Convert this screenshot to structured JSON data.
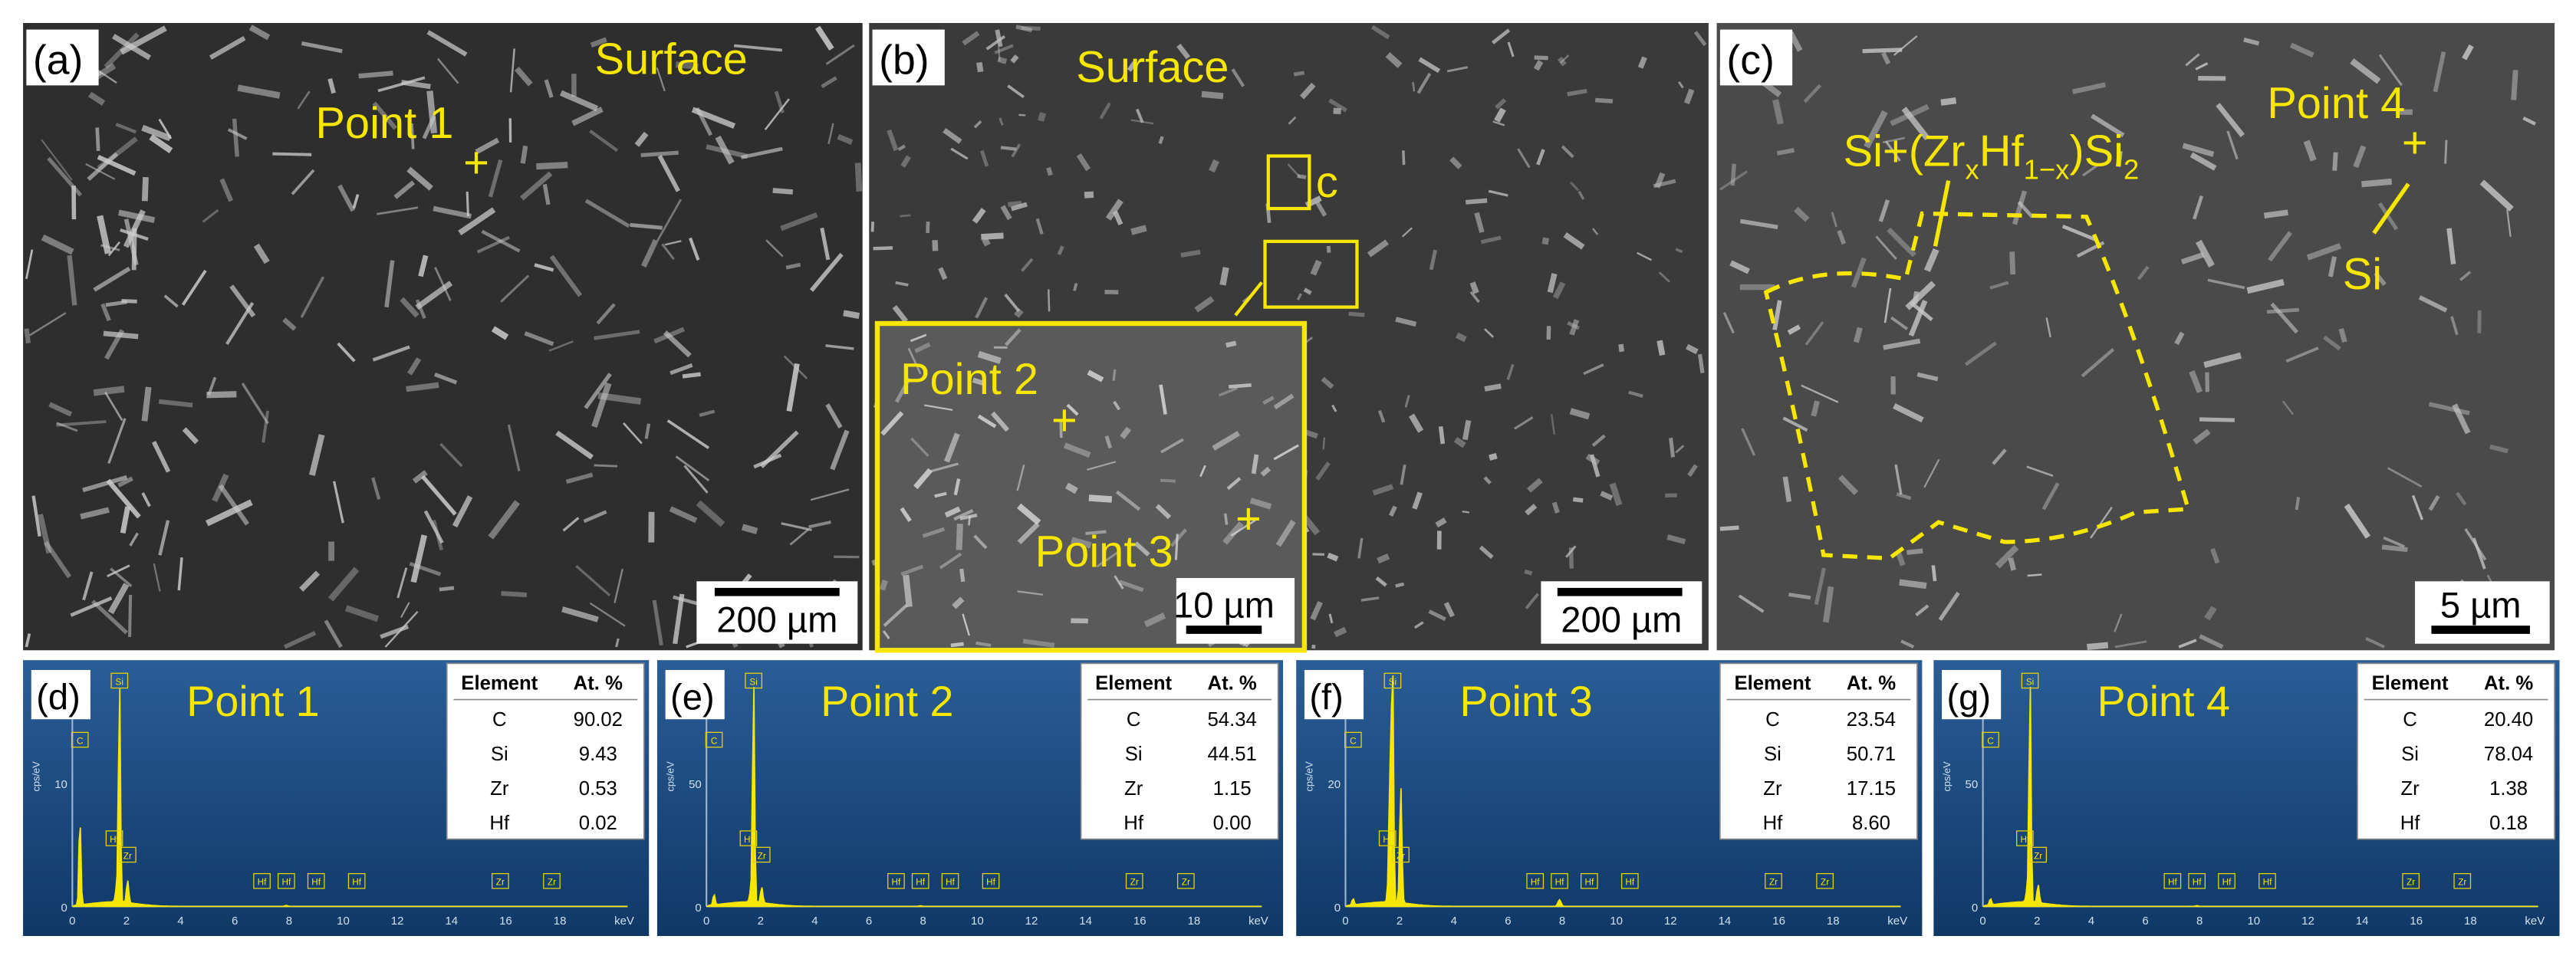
{
  "sem_panels": [
    {
      "label": "(a)",
      "annotations": [
        "Surface",
        "Point 1"
      ],
      "scale_bar": "200 µm"
    },
    {
      "label": "(b)",
      "annotations": [
        "Surface",
        "c",
        "Point 2",
        "Point 3"
      ],
      "scale_bar": "200 µm",
      "inset_scale_bar": "10 µm"
    },
    {
      "label": "(c)",
      "annotations": [
        "Point 4",
        "Si"
      ],
      "phase_label": [
        "Si+(Zr",
        "x",
        "Hf",
        "1−x",
        ")Si",
        "2"
      ],
      "scale_bar": "5 µm"
    }
  ],
  "eds_panels": [
    {
      "label": "(d)",
      "title": "Point 1",
      "y_axis_label": "cps/eV",
      "x_axis_label": "keV",
      "y_ticks": [
        "10",
        "0"
      ],
      "x_ticks": [
        "0",
        "2",
        "4",
        "6",
        "8",
        "10",
        "12",
        "14",
        "16",
        "18"
      ],
      "peak_labels": [
        "Si",
        "C",
        "Hf",
        "Zr",
        "Hf",
        "Hf",
        "Hf",
        "Hf",
        "Zr",
        "Zr"
      ],
      "table": {
        "header": [
          "Element",
          "At. %"
        ],
        "rows": [
          [
            "C",
            "90.02"
          ],
          [
            "Si",
            "9.43"
          ],
          [
            "Zr",
            "0.53"
          ],
          [
            "Hf",
            "0.02"
          ]
        ]
      }
    },
    {
      "label": "(e)",
      "title": "Point 2",
      "y_axis_label": "cps/eV",
      "x_axis_label": "keV",
      "y_ticks": [
        "50",
        "0"
      ],
      "x_ticks": [
        "0",
        "2",
        "4",
        "6",
        "8",
        "10",
        "12",
        "14",
        "16",
        "18"
      ],
      "peak_labels": [
        "Si",
        "C",
        "Hf",
        "Zr",
        "Hf",
        "Hf",
        "Hf",
        "Hf",
        "Zr",
        "Zr"
      ],
      "table": {
        "header": [
          "Element",
          "At. %"
        ],
        "rows": [
          [
            "C",
            "54.34"
          ],
          [
            "Si",
            "44.51"
          ],
          [
            "Zr",
            "1.15"
          ],
          [
            "Hf",
            "0.00"
          ]
        ]
      }
    },
    {
      "label": "(f)",
      "title": "Point 3",
      "y_axis_label": "cps/eV",
      "x_axis_label": "keV",
      "y_ticks": [
        "20",
        "0"
      ],
      "x_ticks": [
        "0",
        "2",
        "4",
        "6",
        "8",
        "10",
        "12",
        "14",
        "16",
        "18"
      ],
      "peak_labels": [
        "Si",
        "C",
        "Hf",
        "Zr",
        "Hf",
        "Hf",
        "Hf",
        "Hf",
        "Zr",
        "Zr"
      ],
      "table": {
        "header": [
          "Element",
          "At. %"
        ],
        "rows": [
          [
            "C",
            "23.54"
          ],
          [
            "Si",
            "50.71"
          ],
          [
            "Zr",
            "17.15"
          ],
          [
            "Hf",
            "8.60"
          ]
        ]
      }
    },
    {
      "label": "(g)",
      "title": "Point 4",
      "y_axis_label": "cps/eV",
      "x_axis_label": "keV",
      "y_ticks": [
        "50",
        "0"
      ],
      "x_ticks": [
        "0",
        "2",
        "4",
        "6",
        "8",
        "10",
        "12",
        "14",
        "16",
        "18"
      ],
      "peak_labels": [
        "Si",
        "C",
        "Hf",
        "Zr",
        "Hf",
        "Hf",
        "Hf",
        "Hf",
        "Zr",
        "Zr"
      ],
      "table": {
        "header": [
          "Element",
          "At. %"
        ],
        "rows": [
          [
            "C",
            "20.40"
          ],
          [
            "Si",
            "78.04"
          ],
          [
            "Zr",
            "1.38"
          ],
          [
            "Hf",
            "0.18"
          ]
        ]
      }
    }
  ]
}
